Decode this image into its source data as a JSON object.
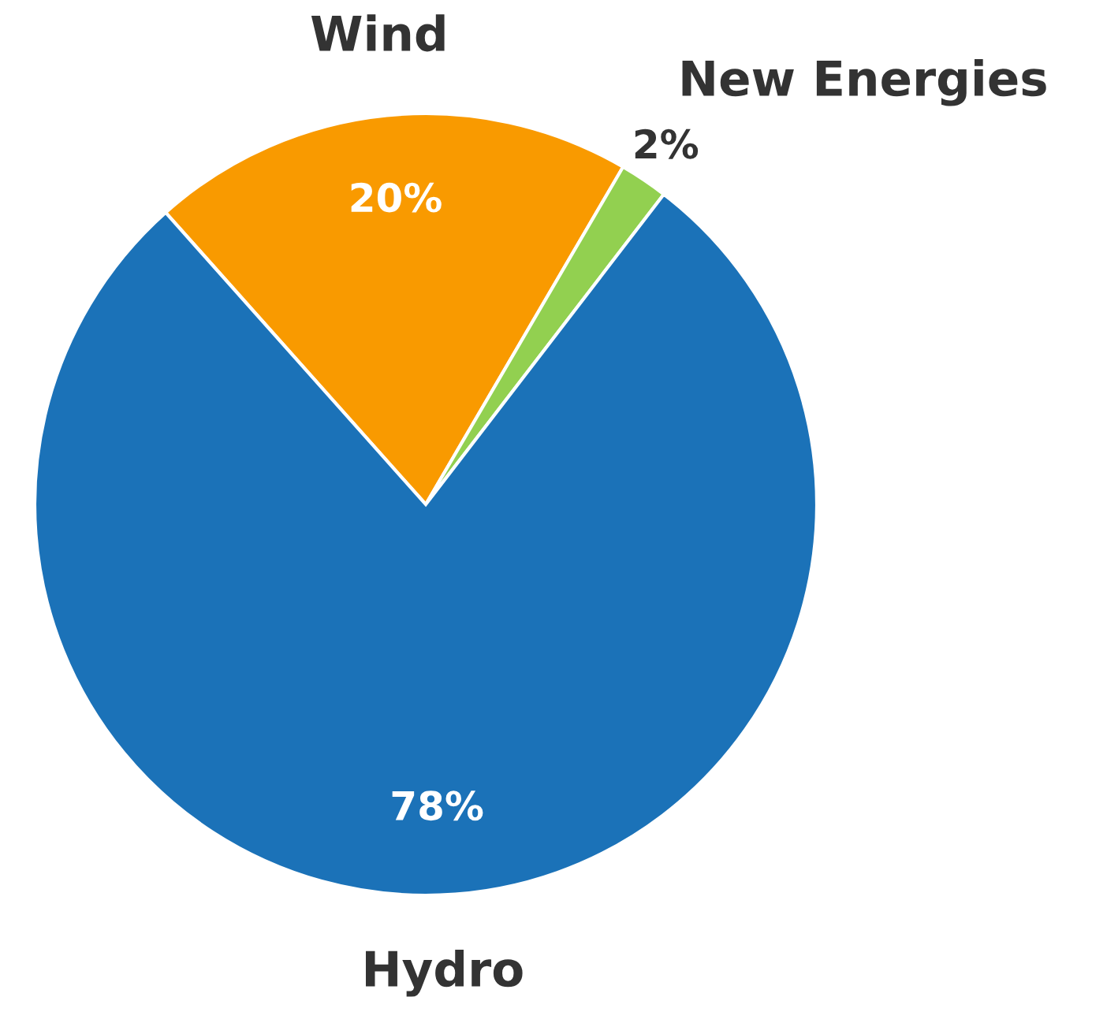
{
  "chart_data": {
    "type": "pie",
    "categories": [
      "Wind",
      "New Energies",
      "Hydro"
    ],
    "values": [
      20,
      2,
      78
    ],
    "colors": [
      "#f99a00",
      "#92d050",
      "#1b72b8"
    ],
    "value_labels": [
      "20%",
      "2%",
      "78%"
    ],
    "legend": false
  }
}
